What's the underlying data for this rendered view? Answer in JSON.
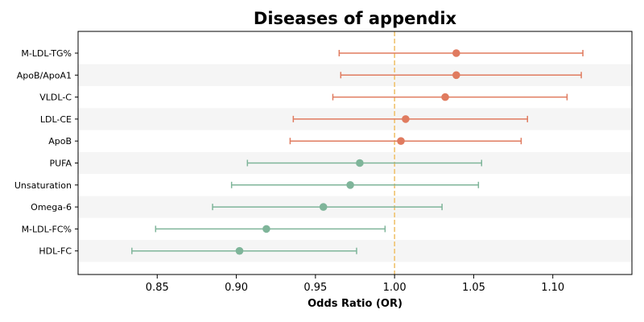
{
  "chart_data": {
    "type": "forest",
    "title": "Diseases of appendix",
    "xlabel": "Odds Ratio (OR)",
    "xlim": [
      0.8,
      1.15
    ],
    "xticks": [
      0.85,
      0.9,
      0.95,
      1.0,
      1.05,
      1.1
    ],
    "xtick_labels": [
      "0.85",
      "0.90",
      "0.95",
      "1.00",
      "1.05",
      "1.10"
    ],
    "reference_line": 1.0,
    "reference_color": "#f0c26e",
    "colors": {
      "positive": "#e07b5f",
      "negative": "#7fb59a",
      "band": "#f5f5f5"
    },
    "rows": [
      {
        "label": "M-LDL-TG%",
        "or": 1.039,
        "lower": 0.965,
        "upper": 1.119,
        "group": "positive"
      },
      {
        "label": "ApoB/ApoA1",
        "or": 1.039,
        "lower": 0.966,
        "upper": 1.118,
        "group": "positive"
      },
      {
        "label": "VLDL-C",
        "or": 1.032,
        "lower": 0.961,
        "upper": 1.109,
        "group": "positive"
      },
      {
        "label": "LDL-CE",
        "or": 1.007,
        "lower": 0.936,
        "upper": 1.084,
        "group": "positive"
      },
      {
        "label": "ApoB",
        "or": 1.004,
        "lower": 0.934,
        "upper": 1.08,
        "group": "positive"
      },
      {
        "label": "PUFA",
        "or": 0.978,
        "lower": 0.907,
        "upper": 1.055,
        "group": "negative"
      },
      {
        "label": "Unsaturation",
        "or": 0.972,
        "lower": 0.897,
        "upper": 1.053,
        "group": "negative"
      },
      {
        "label": "Omega-6",
        "or": 0.955,
        "lower": 0.885,
        "upper": 1.03,
        "group": "negative"
      },
      {
        "label": "M-LDL-FC%",
        "or": 0.919,
        "lower": 0.849,
        "upper": 0.994,
        "group": "negative"
      },
      {
        "label": "HDL-FC",
        "or": 0.902,
        "lower": 0.834,
        "upper": 0.976,
        "group": "negative"
      }
    ]
  }
}
